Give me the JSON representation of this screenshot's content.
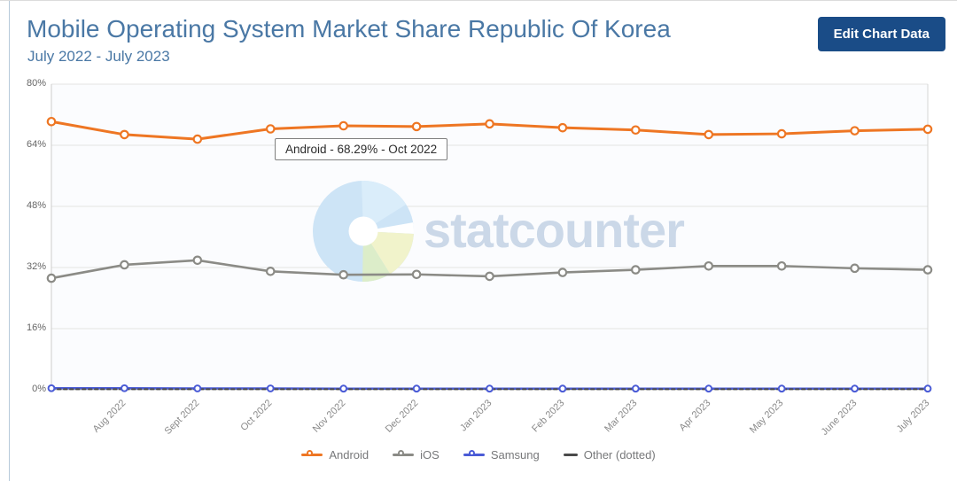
{
  "header": {
    "title": "Mobile Operating System Market Share Republic Of Korea",
    "subtitle": "July 2022 - July 2023",
    "edit_button_label": "Edit Chart Data"
  },
  "tooltip": {
    "text": "Android - 68.29% - Oct 2022"
  },
  "watermark": {
    "text": "statcounter"
  },
  "colors": {
    "accent_button": "#1a4c87",
    "title_text": "#4a78a5",
    "android": "#ee7623",
    "ios": "#8b8b86",
    "samsung": "#4a5bd6",
    "other": "#4a4a4a",
    "gridline": "#e3e3e3",
    "watermark_text": "#cbd8e8"
  },
  "chart_data": {
    "type": "line",
    "title": "Mobile Operating System Market Share Republic Of Korea",
    "subtitle": "July 2022 - July 2023",
    "categories": [
      "July 2022",
      "Aug 2022",
      "Sept 2022",
      "Oct 2022",
      "Nov 2022",
      "Dec 2022",
      "Jan 2023",
      "Feb 2023",
      "Mar 2023",
      "Apr 2023",
      "May 2023",
      "June 2023",
      "July 2023"
    ],
    "x_axis_labels_visible": [
      "Aug 2022",
      "Sept 2022",
      "Oct 2022",
      "Nov 2022",
      "Dec 2022",
      "Jan 2023",
      "Feb 2023",
      "Mar 2023",
      "Apr 2023",
      "May 2023",
      "June 2023",
      "July 2023"
    ],
    "ylim": [
      0,
      80
    ],
    "yticks": [
      "80%",
      "64%",
      "48%",
      "32%",
      "16%",
      "0%"
    ],
    "grid": true,
    "legend_position": "bottom",
    "series": [
      {
        "name": "Android",
        "legend_label": "Android",
        "color": "#ee7623",
        "dash": false,
        "markers": true,
        "width": 3,
        "values": [
          70.2,
          66.8,
          65.6,
          68.29,
          69.1,
          68.9,
          69.6,
          68.6,
          68.0,
          66.8,
          67.0,
          67.8,
          68.2
        ]
      },
      {
        "name": "iOS",
        "legend_label": "iOS",
        "color": "#8b8b86",
        "dash": false,
        "markers": true,
        "width": 2.6,
        "values": [
          29.2,
          32.7,
          33.9,
          31.0,
          30.1,
          30.2,
          29.7,
          30.7,
          31.4,
          32.4,
          32.4,
          31.8,
          31.4
        ]
      },
      {
        "name": "Samsung",
        "legend_label": "Samsung",
        "color": "#4a5bd6",
        "dash": false,
        "markers": true,
        "width": 2.5,
        "values": [
          0.4,
          0.4,
          0.35,
          0.35,
          0.3,
          0.3,
          0.3,
          0.3,
          0.3,
          0.3,
          0.3,
          0.3,
          0.3
        ]
      },
      {
        "name": "Other",
        "legend_label": "Other (dotted)",
        "color": "#4a4a4a",
        "dash": true,
        "markers": false,
        "width": 2,
        "values": [
          0.15,
          0.15,
          0.15,
          0.15,
          0.15,
          0.15,
          0.15,
          0.15,
          0.15,
          0.15,
          0.15,
          0.15,
          0.15
        ]
      }
    ],
    "tooltip_annotation": "Android - 68.29% - Oct 2022"
  }
}
